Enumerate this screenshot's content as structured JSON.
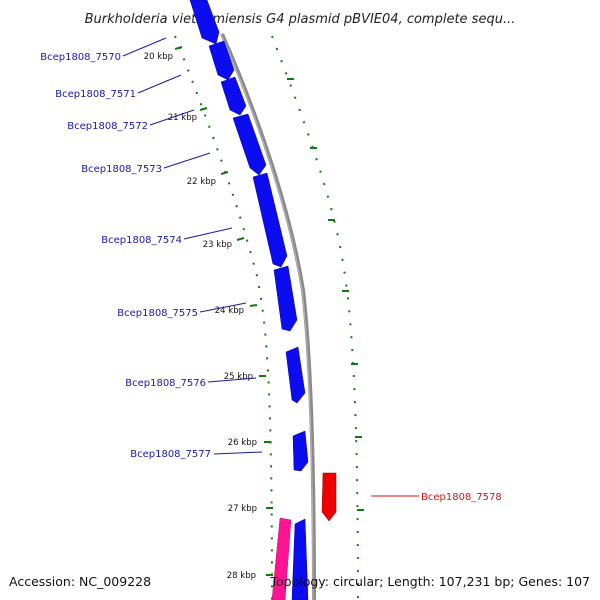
{
  "title": "Burkholderia vietnamiensis G4 plasmid pBVIE04, complete sequ...",
  "accession": "Accession: NC_009228",
  "topology": "Topology: circular; Length: 107,231 bp; Genes: 107",
  "colors": {
    "forward_gene": "#0c0cf0",
    "reverse_gene": "#ee0000",
    "other_feature": "#ff1493",
    "backbone": "#8a8a8a",
    "tick": "#0e7c0e",
    "forward_label": "#1a1aa6",
    "reverse_label": "#d21414"
  },
  "kbp_ticks": [
    "20 kbp",
    "21 kbp",
    "22 kbp",
    "23 kbp",
    "24 kbp",
    "25 kbp",
    "26 kbp",
    "27 kbp",
    "28 kbp"
  ],
  "genes": [
    {
      "name": "Bcep1808_7570",
      "strand": "forward"
    },
    {
      "name": "Bcep1808_7571",
      "strand": "forward"
    },
    {
      "name": "Bcep1808_7572",
      "strand": "forward"
    },
    {
      "name": "Bcep1808_7573",
      "strand": "forward"
    },
    {
      "name": "Bcep1808_7574",
      "strand": "forward"
    },
    {
      "name": "Bcep1808_7575",
      "strand": "forward"
    },
    {
      "name": "Bcep1808_7576",
      "strand": "forward"
    },
    {
      "name": "Bcep1808_7577",
      "strand": "forward"
    },
    {
      "name": "Bcep1808_7578",
      "strand": "reverse"
    }
  ]
}
